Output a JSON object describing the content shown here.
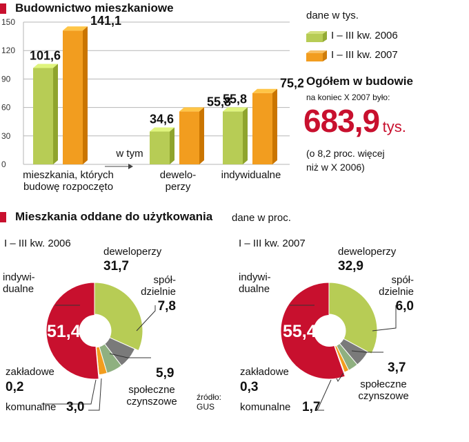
{
  "bar_section": {
    "title": "Budownictwo mieszkaniowe"
  },
  "legend": {
    "note": "dane w tys.",
    "items": [
      {
        "label": "I – III kw. 2006",
        "color": "#b7cc55"
      },
      {
        "label": "I – III kw. 2007",
        "color": "#f29d1f"
      }
    ]
  },
  "summary": {
    "title": "Ogółem w budowie",
    "subtitle": "na koniec X 2007 było:",
    "value": "683,9",
    "unit": "tys.",
    "note_line1": "(o 8,2 proc. więcej",
    "note_line2": "niż w X 2006)"
  },
  "cat_labels": {
    "c1_line1": "mieszkania, których",
    "c1_line2": "budowę rozpoczęto",
    "wtym": "w tym",
    "c2_line1": "dewelo-",
    "c2_line2": "perzy",
    "c3": "indywidualne"
  },
  "pie_section": {
    "title": "Mieszkania oddane do użytkowania",
    "note": "dane w proc."
  },
  "source": {
    "line1": "źródło:",
    "line2": "GUS"
  },
  "chart_data": [
    {
      "type": "bar",
      "title": "Budownictwo mieszkaniowe",
      "unit": "dane w tys.",
      "categories": [
        "mieszkania, których budowę rozpoczęto",
        "deweloperzy",
        "indywidualne"
      ],
      "series": [
        {
          "name": "I – III kw. 2006",
          "values": [
            101.6,
            34.6,
            55.8
          ],
          "labels": [
            "101,6",
            "34,6",
            "55,8"
          ],
          "color": "#b7cc55"
        },
        {
          "name": "I – III kw. 2007",
          "values": [
            141.1,
            55.8,
            75.2
          ],
          "labels": [
            "141,1",
            "55,8",
            "75,2"
          ],
          "color": "#f29d1f"
        }
      ],
      "yticks": [
        0,
        30,
        60,
        90,
        120,
        150
      ],
      "ylim": [
        0,
        150
      ],
      "grid": true,
      "legend": "right"
    },
    {
      "type": "pie",
      "title": "I – III kw. 2006",
      "unit": "dane w proc.",
      "slices": [
        {
          "label": "deweloperzy",
          "value": 31.7,
          "text": "31,7",
          "color": "#b7cc55"
        },
        {
          "label": "spółdzielnie",
          "value": 7.8,
          "text": "7,8",
          "color": "#7a7a7a"
        },
        {
          "label": "społeczne czynszowe",
          "value": 5.9,
          "text": "5,9",
          "color": "#8fb080"
        },
        {
          "label": "komunalne",
          "value": 3.0,
          "text": "3,0",
          "color": "#f29d1f"
        },
        {
          "label": "zakładowe",
          "value": 0.2,
          "text": "0,2",
          "color": "#8b1a1a"
        },
        {
          "label": "indywidualne",
          "value": 51.4,
          "text": "51,4",
          "color": "#c8102e"
        }
      ]
    },
    {
      "type": "pie",
      "title": "I – III kw. 2007",
      "unit": "dane w proc.",
      "slices": [
        {
          "label": "deweloperzy",
          "value": 32.9,
          "text": "32,9",
          "color": "#b7cc55"
        },
        {
          "label": "spółdzielnie",
          "value": 6.0,
          "text": "6,0",
          "color": "#7a7a7a"
        },
        {
          "label": "społeczne czynszowe",
          "value": 3.7,
          "text": "3,7",
          "color": "#8fb080"
        },
        {
          "label": "komunalne",
          "value": 1.7,
          "text": "1,7",
          "color": "#f29d1f"
        },
        {
          "label": "zakładowe",
          "value": 0.3,
          "text": "0,3",
          "color": "#8b1a1a"
        },
        {
          "label": "indywidualne",
          "value": 55.4,
          "text": "55,4",
          "color": "#c8102e"
        }
      ]
    }
  ]
}
